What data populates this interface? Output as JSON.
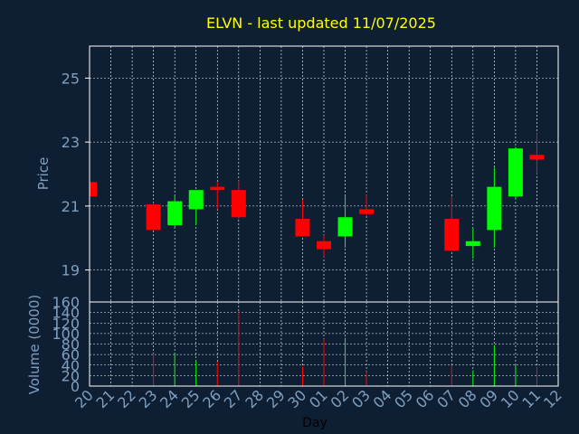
{
  "chart_data": [
    {
      "type": "candlestick",
      "title": "ELVN - last updated 11/07/2025",
      "ylabel": "Price",
      "ylim": [
        18,
        26
      ],
      "yticks": [
        19,
        21,
        23,
        25
      ],
      "grid": true,
      "colors": {
        "up": "#00ff00",
        "down": "#ff0000",
        "title": "#ffff00",
        "axis_text": "#7f9fbf",
        "grid": "#ffffff",
        "background": "#0f1f33",
        "plot_background": "#0f1f33"
      },
      "candles": [
        {
          "x": 20,
          "open": 21.75,
          "high": 21.75,
          "low": 21.3,
          "close": 21.3
        },
        {
          "x": 23,
          "open": 21.05,
          "high": 21.1,
          "low": 20.25,
          "close": 20.25
        },
        {
          "x": 24,
          "open": 20.4,
          "high": 21.35,
          "low": 20.3,
          "close": 21.15
        },
        {
          "x": 25,
          "open": 20.9,
          "high": 21.5,
          "low": 20.4,
          "close": 21.5
        },
        {
          "x": 26,
          "open": 21.6,
          "high": 21.75,
          "low": 20.9,
          "close": 21.5
        },
        {
          "x": 27,
          "open": 21.5,
          "high": 21.8,
          "low": 20.6,
          "close": 20.65
        },
        {
          "x": 30,
          "open": 20.6,
          "high": 21.2,
          "low": 20.05,
          "close": 20.05
        },
        {
          "x": 31,
          "open": 19.9,
          "high": 20.1,
          "low": 19.4,
          "close": 19.65
        },
        {
          "x": 32,
          "open": 20.05,
          "high": 21.3,
          "low": 19.7,
          "close": 20.65
        },
        {
          "x": 33,
          "open": 20.9,
          "high": 21.35,
          "low": 20.7,
          "close": 20.75
        },
        {
          "x": 37,
          "open": 20.6,
          "high": 21.3,
          "low": 19.6,
          "close": 19.6
        },
        {
          "x": 38,
          "open": 19.75,
          "high": 20.3,
          "low": 19.35,
          "close": 19.9
        },
        {
          "x": 39,
          "open": 20.25,
          "high": 22.2,
          "low": 19.7,
          "close": 21.6
        },
        {
          "x": 40,
          "open": 21.3,
          "high": 22.85,
          "low": 21.2,
          "close": 22.8
        },
        {
          "x": 41,
          "open": 22.6,
          "high": 23.3,
          "low": 22.0,
          "close": 22.45
        }
      ]
    },
    {
      "type": "bar",
      "ylabel": "Volume (0000)",
      "xlabel": "Day",
      "ylim": [
        0,
        160
      ],
      "yticks": [
        0,
        20,
        40,
        60,
        80,
        100,
        120,
        140,
        160
      ],
      "xlim": [
        20,
        42
      ],
      "x_tick_labels": [
        "20",
        "21",
        "22",
        "23",
        "24",
        "25",
        "26",
        "27",
        "28",
        "29",
        "30",
        "01",
        "02",
        "03",
        "04",
        "05",
        "06",
        "07",
        "08",
        "09",
        "10",
        "11",
        "12"
      ],
      "bars": [
        {
          "x": 23,
          "value": 62,
          "dir": "down"
        },
        {
          "x": 24,
          "value": 64,
          "dir": "up"
        },
        {
          "x": 25,
          "value": 48,
          "dir": "up"
        },
        {
          "x": 26,
          "value": 46,
          "dir": "down"
        },
        {
          "x": 27,
          "value": 143,
          "dir": "down"
        },
        {
          "x": 30,
          "value": 37,
          "dir": "down"
        },
        {
          "x": 31,
          "value": 90,
          "dir": "down"
        },
        {
          "x": 32,
          "value": 92,
          "dir": "up"
        },
        {
          "x": 33,
          "value": 28,
          "dir": "down"
        },
        {
          "x": 37,
          "value": 40,
          "dir": "down"
        },
        {
          "x": 38,
          "value": 30,
          "dir": "up"
        },
        {
          "x": 39,
          "value": 78,
          "dir": "up"
        },
        {
          "x": 40,
          "value": 40,
          "dir": "up"
        },
        {
          "x": 41,
          "value": 37,
          "dir": "down"
        }
      ]
    }
  ]
}
